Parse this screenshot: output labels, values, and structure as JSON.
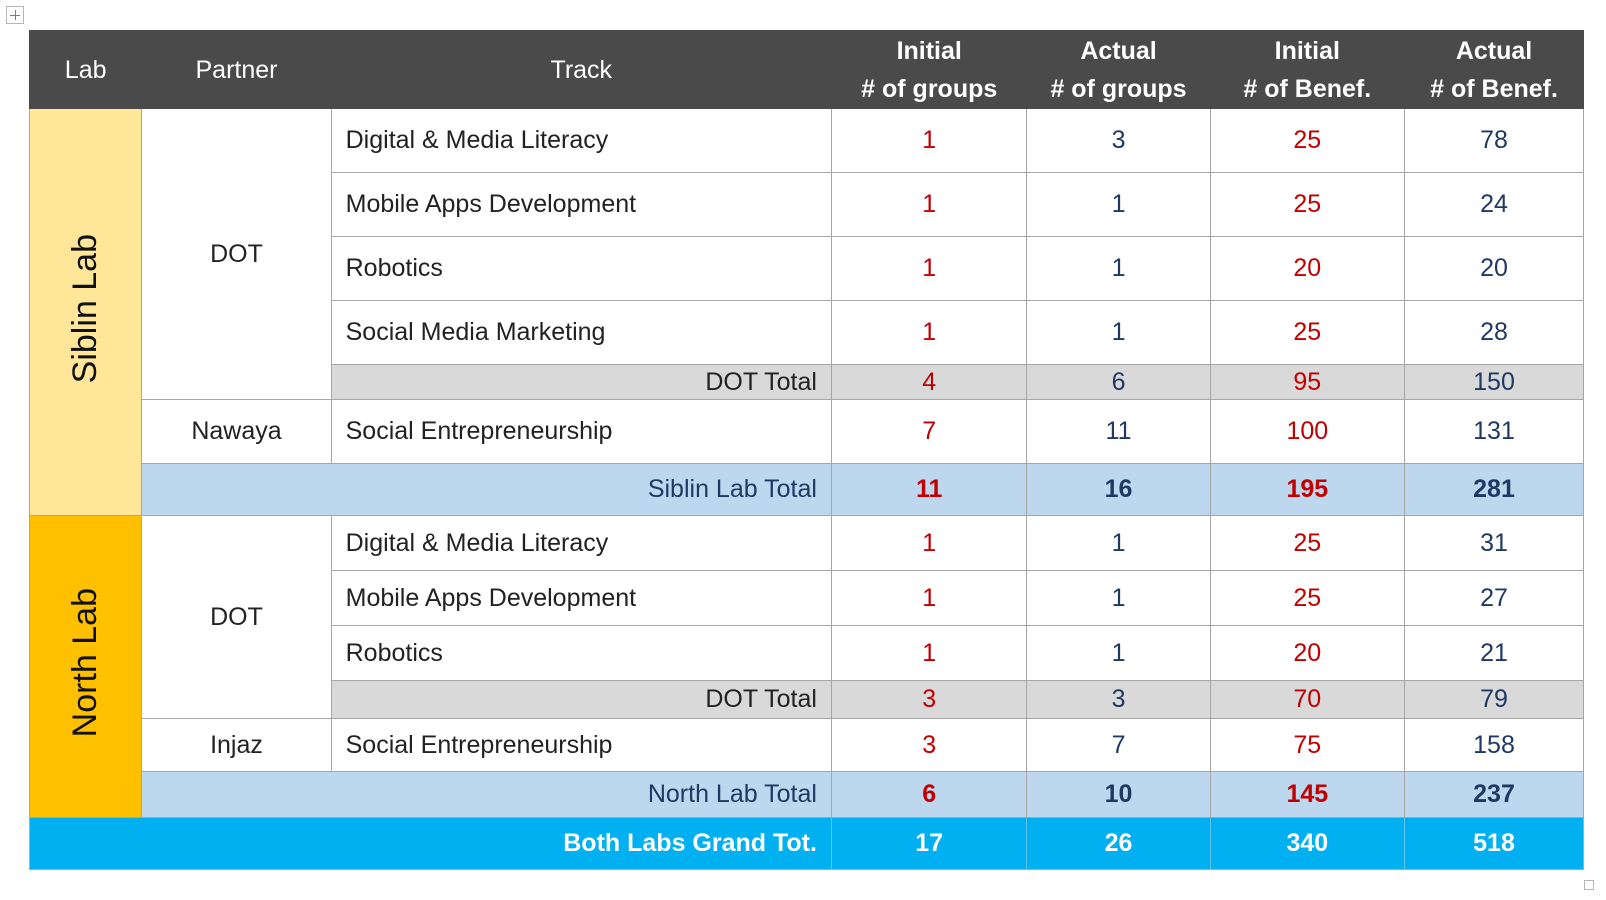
{
  "headers": {
    "lab": "Lab",
    "partner": "Partner",
    "track": "Track",
    "initial_groups": [
      "Initial",
      "# of groups"
    ],
    "actual_groups": [
      "Actual",
      "# of groups"
    ],
    "initial_benef": [
      "Initial",
      "# of Benef."
    ],
    "actual_benef": [
      "Actual",
      "# of Benef."
    ]
  },
  "siblin": {
    "lab": "Siblin Lab",
    "dot_partner": "DOT",
    "dot_rows": [
      {
        "track": "Digital & Media Literacy",
        "ig": "1",
        "ag": "3",
        "ib": "25",
        "ab": "78"
      },
      {
        "track": "Mobile Apps Development",
        "ig": "1",
        "ag": "1",
        "ib": "25",
        "ab": "24"
      },
      {
        "track": "Robotics",
        "ig": "1",
        "ag": "1",
        "ib": "20",
        "ab": "20"
      },
      {
        "track": "Social Media Marketing",
        "ig": "1",
        "ag": "1",
        "ib": "25",
        "ab": "28"
      }
    ],
    "dot_total": {
      "label": "DOT Total",
      "ig": "4",
      "ag": "6",
      "ib": "95",
      "ab": "150"
    },
    "second_partner": "Nawaya",
    "second_row": {
      "track": "Social Entrepreneurship",
      "ig": "7",
      "ag": "11",
      "ib": "100",
      "ab": "131"
    },
    "lab_total": {
      "label": "Siblin Lab Total",
      "ig": "11",
      "ag": "16",
      "ib": "195",
      "ab": "281"
    }
  },
  "north": {
    "lab": "North Lab",
    "dot_partner": "DOT",
    "dot_rows": [
      {
        "track": "Digital & Media Literacy",
        "ig": "1",
        "ag": "1",
        "ib": "25",
        "ab": "31"
      },
      {
        "track": "Mobile Apps Development",
        "ig": "1",
        "ag": "1",
        "ib": "25",
        "ab": "27"
      },
      {
        "track": "Robotics",
        "ig": "1",
        "ag": "1",
        "ib": "20",
        "ab": "21"
      }
    ],
    "dot_total": {
      "label": "DOT Total",
      "ig": "3",
      "ag": "3",
      "ib": "70",
      "ab": "79"
    },
    "second_partner": "Injaz",
    "second_row": {
      "track": "Social Entrepreneurship",
      "ig": "3",
      "ag": "7",
      "ib": "75",
      "ab": "158"
    },
    "lab_total": {
      "label": "North Lab Total",
      "ig": "6",
      "ag": "10",
      "ib": "145",
      "ab": "237"
    }
  },
  "grand_total": {
    "label": "Both Labs Grand Tot.",
    "ig": "17",
    "ag": "26",
    "ib": "340",
    "ab": "518"
  },
  "colors": {
    "header_bg": "#4a4a4a",
    "siblin_lab_bg": "#ffe699",
    "north_lab_bg": "#ffc000",
    "subtotal_bg": "#d9d9d9",
    "lab_total_bg": "#bdd7ee",
    "grand_total_bg": "#00b0f0",
    "initial_value": "#c00000",
    "actual_value": "#1f3864"
  }
}
